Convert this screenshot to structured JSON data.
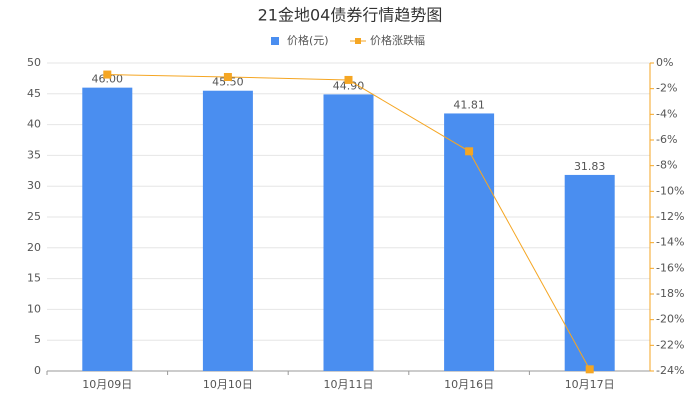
{
  "chart_data": {
    "type": "bar-line",
    "title": "21金地04债券行情趋势图",
    "categories": [
      "10月09日",
      "10月10日",
      "10月11日",
      "10月16日",
      "10月17日"
    ],
    "series": [
      {
        "name": "价格(元)",
        "type": "bar",
        "color": "#4a8ef0",
        "values": [
          46.0,
          45.5,
          44.9,
          41.81,
          31.83
        ],
        "value_labels": [
          "46.00",
          "45.50",
          "44.90",
          "41.81",
          "31.83"
        ]
      },
      {
        "name": "价格涨跌幅",
        "type": "line",
        "axis": "y2",
        "color": "#f5a623",
        "values": [
          -0.9,
          -1.09,
          -1.32,
          -6.88,
          -23.87
        ]
      }
    ],
    "ylim": [
      0,
      50
    ],
    "yticks": [
      0,
      5,
      10,
      15,
      20,
      25,
      30,
      35,
      40,
      45,
      50
    ],
    "y2lim": [
      -24,
      0
    ],
    "y2ticks": [
      {
        "value": 0,
        "label": "0%"
      },
      {
        "value": -2,
        "label": "-2%"
      },
      {
        "value": -4,
        "label": "-4%"
      },
      {
        "value": -6,
        "label": "-6%"
      },
      {
        "value": -8,
        "label": "-8%"
      },
      {
        "value": -10,
        "label": "-10%"
      },
      {
        "value": -12,
        "label": "-12%"
      },
      {
        "value": -14,
        "label": "-14%"
      },
      {
        "value": -16,
        "label": "-16%"
      },
      {
        "value": -18,
        "label": "-18%"
      },
      {
        "value": -20,
        "label": "-20%"
      },
      {
        "value": -22,
        "label": "-22%"
      },
      {
        "value": -24,
        "label": "-24%"
      }
    ],
    "grid": true
  }
}
